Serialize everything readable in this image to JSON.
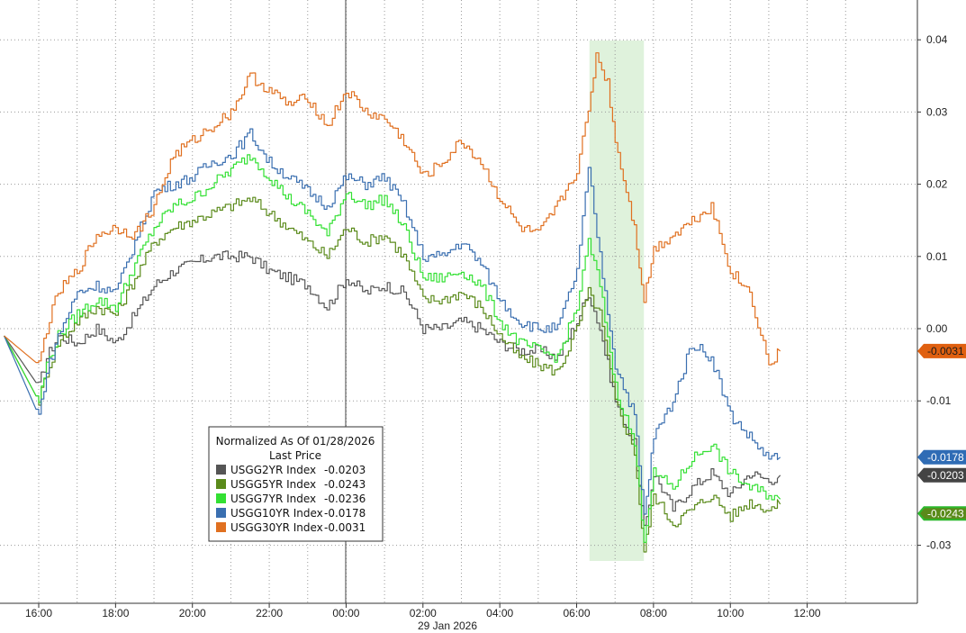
{
  "chart_data": {
    "type": "line",
    "title": "",
    "xlabel": "",
    "ylabel": "",
    "date_label": "29 Jan 2026",
    "x_ticks": [
      "16:00",
      "18:00",
      "20:00",
      "22:00",
      "00:00",
      "02:00",
      "04:00",
      "06:00",
      "08:00",
      "10:00",
      "12:00"
    ],
    "y_ticks": [
      "0.04",
      "0.03",
      "0.02",
      "0.01",
      "0.00",
      "-0.01",
      "-0.03"
    ],
    "ylim": [
      -0.035,
      0.045
    ],
    "grid": true,
    "highlight_band": {
      "from": "06:20",
      "to": "07:45",
      "color": "#dff2dc"
    },
    "legend": {
      "position": "bottom-left",
      "title": "Normalized As Of 01/28/2026",
      "subtitle": "Last Price"
    },
    "series": [
      {
        "name": "USGG2YR Index",
        "last": "-0.0203",
        "color": "#555555",
        "points": [
          [
            -0.9,
            -0.001
          ],
          [
            0,
            -0.008
          ],
          [
            0.2,
            -0.004
          ],
          [
            0.5,
            -0.001
          ],
          [
            1,
            -0.002
          ],
          [
            1.5,
            0.0
          ],
          [
            2,
            -0.002
          ],
          [
            2.5,
            0.002
          ],
          [
            3,
            0.006
          ],
          [
            3.5,
            0.008
          ],
          [
            4,
            0.009
          ],
          [
            4.5,
            0.01
          ],
          [
            5,
            0.01
          ],
          [
            5.5,
            0.01
          ],
          [
            6,
            0.008
          ],
          [
            6.5,
            0.007
          ],
          [
            7,
            0.006
          ],
          [
            7.5,
            0.003
          ],
          [
            8,
            0.007
          ],
          [
            8.5,
            0.005
          ],
          [
            9,
            0.006
          ],
          [
            9.5,
            0.005
          ],
          [
            10,
            0.0
          ],
          [
            10.5,
            0.0
          ],
          [
            11,
            0.001
          ],
          [
            11.5,
            0.0
          ],
          [
            12,
            -0.002
          ],
          [
            12.5,
            -0.003
          ],
          [
            13,
            -0.003
          ],
          [
            13.5,
            -0.004
          ],
          [
            14,
            0.001
          ],
          [
            14.3,
            0.005
          ],
          [
            14.6,
            0.0
          ],
          [
            15,
            -0.01
          ],
          [
            15.5,
            -0.016
          ],
          [
            15.75,
            -0.028
          ],
          [
            16,
            -0.02
          ],
          [
            16.5,
            -0.025
          ],
          [
            17,
            -0.022
          ],
          [
            17.5,
            -0.02
          ],
          [
            18,
            -0.023
          ],
          [
            18.5,
            -0.02
          ],
          [
            19,
            -0.021
          ],
          [
            19.3,
            -0.0203
          ]
        ]
      },
      {
        "name": "USGG5YR Index",
        "last": "-0.0243",
        "color": "#5a8a1a",
        "points": [
          [
            -0.9,
            -0.001
          ],
          [
            0,
            -0.01
          ],
          [
            0.2,
            -0.006
          ],
          [
            0.5,
            -0.002
          ],
          [
            1,
            0.001
          ],
          [
            1.5,
            0.003
          ],
          [
            2,
            0.002
          ],
          [
            2.5,
            0.007
          ],
          [
            3,
            0.012
          ],
          [
            3.5,
            0.014
          ],
          [
            4,
            0.015
          ],
          [
            4.5,
            0.016
          ],
          [
            5,
            0.017
          ],
          [
            5.5,
            0.018
          ],
          [
            6,
            0.016
          ],
          [
            6.5,
            0.014
          ],
          [
            7,
            0.012
          ],
          [
            7.5,
            0.01
          ],
          [
            8,
            0.014
          ],
          [
            8.5,
            0.012
          ],
          [
            9,
            0.013
          ],
          [
            9.5,
            0.01
          ],
          [
            10,
            0.004
          ],
          [
            10.5,
            0.004
          ],
          [
            11,
            0.005
          ],
          [
            11.5,
            0.003
          ],
          [
            12,
            -0.001
          ],
          [
            12.5,
            -0.004
          ],
          [
            13,
            -0.005
          ],
          [
            13.5,
            -0.006
          ],
          [
            14,
            0.0
          ],
          [
            14.3,
            0.005
          ],
          [
            14.6,
            0.002
          ],
          [
            15,
            -0.01
          ],
          [
            15.5,
            -0.017
          ],
          [
            15.75,
            -0.031
          ],
          [
            16,
            -0.023
          ],
          [
            16.5,
            -0.027
          ],
          [
            17,
            -0.025
          ],
          [
            17.5,
            -0.023
          ],
          [
            18,
            -0.026
          ],
          [
            18.5,
            -0.024
          ],
          [
            19,
            -0.025
          ],
          [
            19.3,
            -0.0243
          ]
        ]
      },
      {
        "name": "USGG7YR Index",
        "last": "-0.0236",
        "color": "#33e033",
        "points": [
          [
            -0.9,
            -0.001
          ],
          [
            0,
            -0.01
          ],
          [
            0.2,
            -0.005
          ],
          [
            0.5,
            -0.001
          ],
          [
            1,
            0.002
          ],
          [
            1.5,
            0.004
          ],
          [
            2,
            0.003
          ],
          [
            2.5,
            0.009
          ],
          [
            3,
            0.014
          ],
          [
            3.5,
            0.017
          ],
          [
            4,
            0.018
          ],
          [
            4.5,
            0.02
          ],
          [
            5,
            0.022
          ],
          [
            5.5,
            0.024
          ],
          [
            6,
            0.021
          ],
          [
            6.5,
            0.018
          ],
          [
            7,
            0.016
          ],
          [
            7.5,
            0.013
          ],
          [
            8,
            0.019
          ],
          [
            8.5,
            0.017
          ],
          [
            9,
            0.018
          ],
          [
            9.5,
            0.014
          ],
          [
            10,
            0.007
          ],
          [
            10.5,
            0.007
          ],
          [
            11,
            0.008
          ],
          [
            11.5,
            0.006
          ],
          [
            12,
            0.001
          ],
          [
            12.5,
            -0.002
          ],
          [
            13,
            -0.003
          ],
          [
            13.5,
            -0.004
          ],
          [
            14,
            0.003
          ],
          [
            14.3,
            0.012
          ],
          [
            14.6,
            0.006
          ],
          [
            15,
            -0.008
          ],
          [
            15.5,
            -0.016
          ],
          [
            15.75,
            -0.029
          ],
          [
            16,
            -0.02
          ],
          [
            16.5,
            -0.022
          ],
          [
            17,
            -0.018
          ],
          [
            17.5,
            -0.016
          ],
          [
            18,
            -0.02
          ],
          [
            18.5,
            -0.022
          ],
          [
            19,
            -0.023
          ],
          [
            19.3,
            -0.0236
          ]
        ]
      },
      {
        "name": "USGG10YR Index",
        "last": "-0.0178",
        "color": "#3a6fb0",
        "points": [
          [
            -0.9,
            -0.001
          ],
          [
            0,
            -0.012
          ],
          [
            0.2,
            -0.006
          ],
          [
            0.5,
            -0.001
          ],
          [
            1,
            0.005
          ],
          [
            1.5,
            0.006
          ],
          [
            2,
            0.005
          ],
          [
            2.5,
            0.012
          ],
          [
            3,
            0.019
          ],
          [
            3.5,
            0.02
          ],
          [
            4,
            0.021
          ],
          [
            4.5,
            0.023
          ],
          [
            5,
            0.024
          ],
          [
            5.5,
            0.027
          ],
          [
            6,
            0.023
          ],
          [
            6.5,
            0.021
          ],
          [
            7,
            0.019
          ],
          [
            7.5,
            0.017
          ],
          [
            8,
            0.021
          ],
          [
            8.5,
            0.02
          ],
          [
            9,
            0.021
          ],
          [
            9.5,
            0.017
          ],
          [
            10,
            0.01
          ],
          [
            10.5,
            0.01
          ],
          [
            11,
            0.012
          ],
          [
            11.5,
            0.009
          ],
          [
            12,
            0.004
          ],
          [
            12.5,
            0.001
          ],
          [
            13,
            0.0
          ],
          [
            13.5,
            0.0
          ],
          [
            14,
            0.008
          ],
          [
            14.3,
            0.022
          ],
          [
            14.6,
            0.01
          ],
          [
            15,
            -0.005
          ],
          [
            15.5,
            -0.012
          ],
          [
            15.75,
            -0.026
          ],
          [
            16,
            -0.015
          ],
          [
            16.5,
            -0.01
          ],
          [
            17,
            -0.002
          ],
          [
            17.5,
            -0.004
          ],
          [
            18,
            -0.012
          ],
          [
            18.5,
            -0.015
          ],
          [
            19,
            -0.018
          ],
          [
            19.3,
            -0.0178
          ]
        ]
      },
      {
        "name": "USGG30YR Index",
        "last": "-0.0031",
        "color": "#e07020",
        "points": [
          [
            -0.9,
            -0.001
          ],
          [
            0,
            -0.005
          ],
          [
            0.2,
            0.0
          ],
          [
            0.5,
            0.005
          ],
          [
            1,
            0.008
          ],
          [
            1.5,
            0.013
          ],
          [
            2,
            0.014
          ],
          [
            2.5,
            0.013
          ],
          [
            3,
            0.017
          ],
          [
            3.5,
            0.024
          ],
          [
            4,
            0.026
          ],
          [
            4.5,
            0.028
          ],
          [
            5,
            0.03
          ],
          [
            5.5,
            0.035
          ],
          [
            6,
            0.033
          ],
          [
            6.5,
            0.031
          ],
          [
            7,
            0.032
          ],
          [
            7.5,
            0.028
          ],
          [
            8,
            0.033
          ],
          [
            8.5,
            0.03
          ],
          [
            9,
            0.029
          ],
          [
            9.5,
            0.026
          ],
          [
            10,
            0.021
          ],
          [
            10.5,
            0.023
          ],
          [
            11,
            0.026
          ],
          [
            11.5,
            0.023
          ],
          [
            12,
            0.018
          ],
          [
            12.5,
            0.014
          ],
          [
            13,
            0.013
          ],
          [
            13.5,
            0.017
          ],
          [
            14,
            0.022
          ],
          [
            14.3,
            0.03
          ],
          [
            14.5,
            0.038
          ],
          [
            14.8,
            0.034
          ],
          [
            15,
            0.026
          ],
          [
            15.5,
            0.014
          ],
          [
            15.75,
            0.004
          ],
          [
            16,
            0.011
          ],
          [
            16.5,
            0.013
          ],
          [
            17,
            0.015
          ],
          [
            17.5,
            0.017
          ],
          [
            18,
            0.008
          ],
          [
            18.5,
            0.005
          ],
          [
            19,
            -0.005
          ],
          [
            19.3,
            -0.0031
          ]
        ]
      }
    ]
  }
}
